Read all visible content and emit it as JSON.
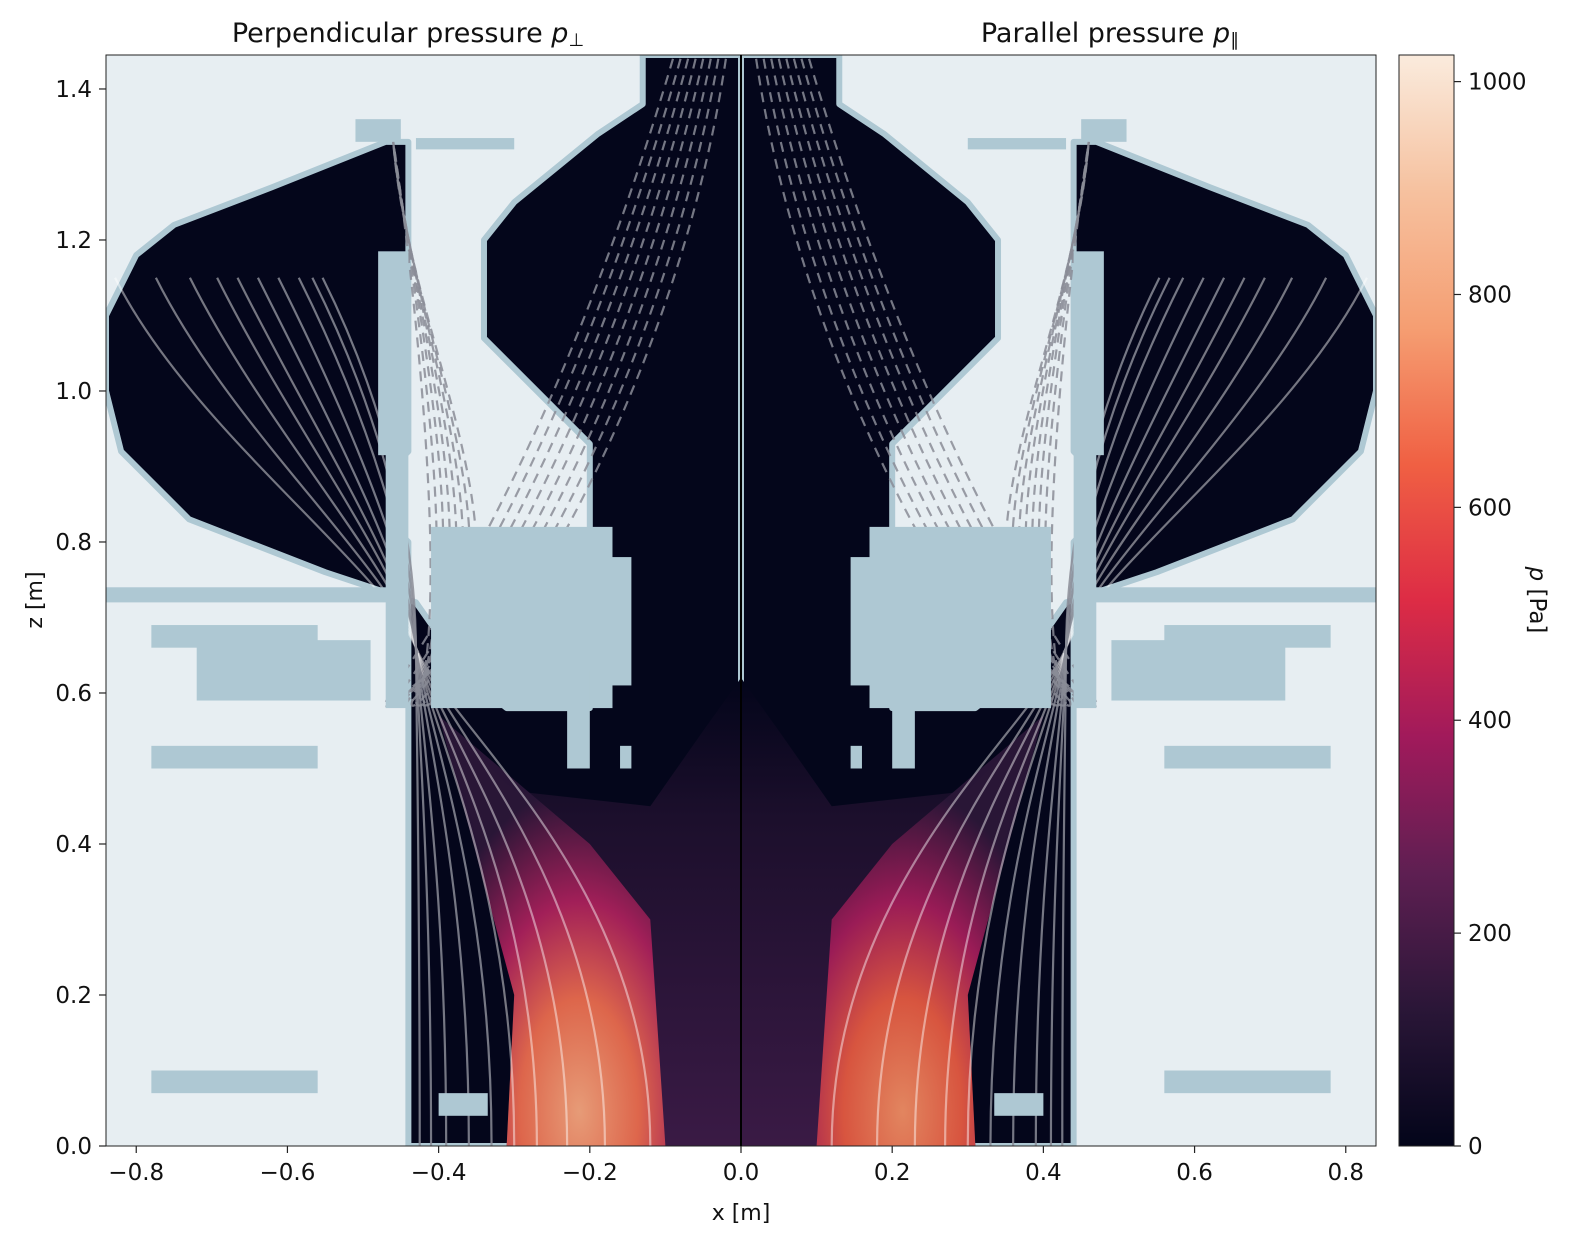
{
  "chart_data": {
    "type": "heatmap",
    "panels": [
      {
        "title": "Perpendicular pressure",
        "symbol": "p",
        "subscript": "⊥",
        "x_range": [
          -0.84,
          0.0
        ]
      },
      {
        "title": "Parallel pressure",
        "symbol": "p",
        "subscript": "∥",
        "x_range": [
          0.0,
          0.84
        ]
      }
    ],
    "xlabel": "x [m]",
    "ylabel": "z [m]",
    "xlim": [
      -0.84,
      0.84
    ],
    "ylim": [
      0.0,
      1.445
    ],
    "x_ticks": [
      -0.8,
      -0.6,
      -0.4,
      -0.2,
      0.0,
      0.2,
      0.4,
      0.6,
      0.8
    ],
    "x_tick_labels": [
      "−0.8",
      "−0.6",
      "−0.4",
      "−0.2",
      "0.0",
      "0.2",
      "0.4",
      "0.6",
      "0.8"
    ],
    "y_ticks": [
      0.0,
      0.2,
      0.4,
      0.6,
      0.8,
      1.0,
      1.2,
      1.4
    ],
    "y_tick_labels": [
      "0.0",
      "0.2",
      "0.4",
      "0.6",
      "0.8",
      "1.0",
      "1.2",
      "1.4"
    ],
    "colorbar": {
      "label_symbol": "p",
      "label_unit": "[Pa]",
      "range": [
        0,
        1025
      ],
      "ticks": [
        0,
        200,
        400,
        600,
        800,
        1000
      ],
      "tick_labels": [
        "0",
        "200",
        "400",
        "600",
        "800",
        "1000"
      ],
      "colormap": [
        "#03051a",
        "#2a1637",
        "#5e1f52",
        "#a11a5b",
        "#dd2c45",
        "#f06043",
        "#f59e72",
        "#f6c19f",
        "#faebdd"
      ]
    },
    "colors": {
      "background": "#e7eef2",
      "structure": "#aec8d3",
      "field_line": "#8a8c96",
      "separatrix": "#ffffff"
    }
  }
}
